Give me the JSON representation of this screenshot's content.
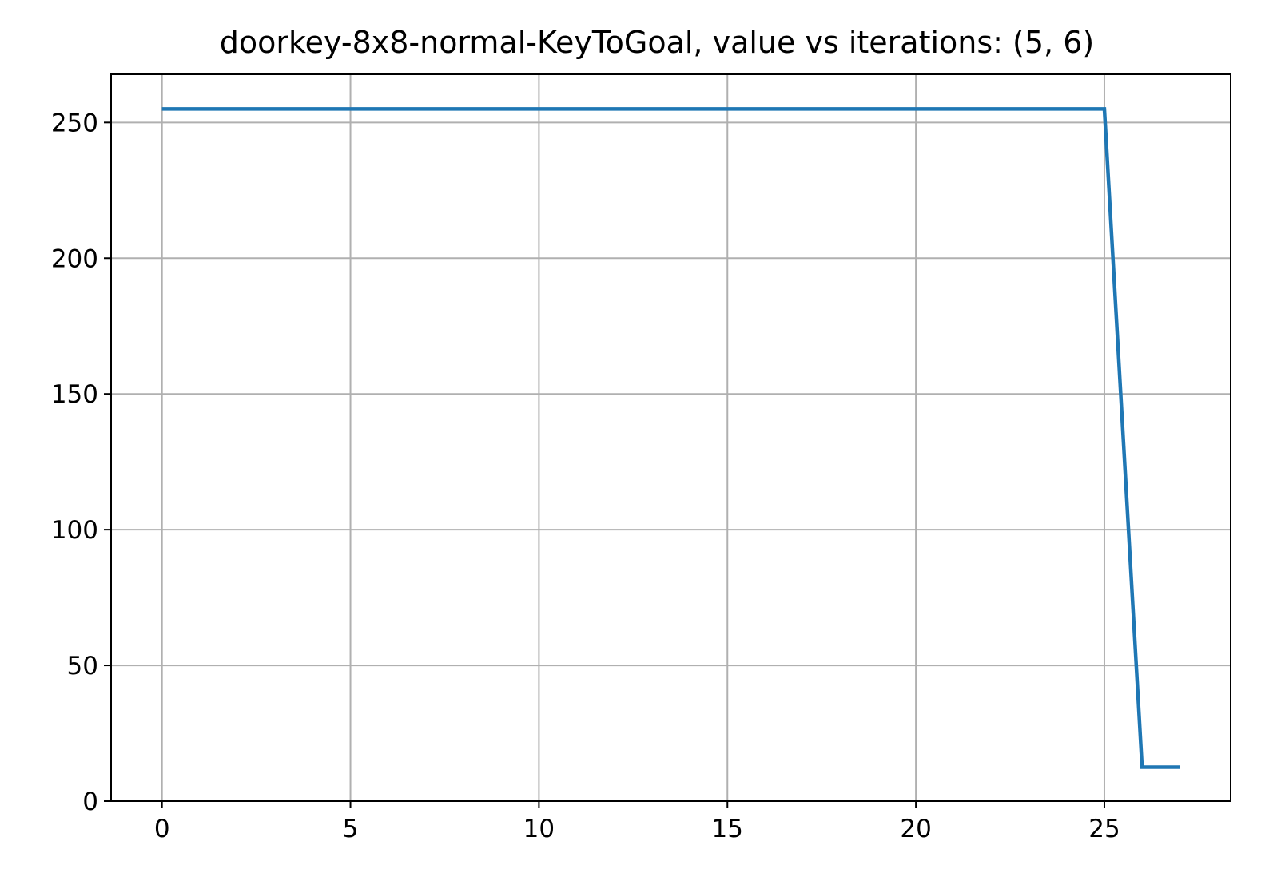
{
  "chart_data": {
    "type": "line",
    "title": "doorkey-8x8-normal-KeyToGoal, value vs iterations: (5, 6)",
    "xlabel": "",
    "ylabel": "",
    "xlim": [
      -1.35,
      28.35
    ],
    "ylim": [
      0,
      267.75
    ],
    "xticks": [
      0,
      5,
      10,
      15,
      20,
      25
    ],
    "yticks": [
      0,
      50,
      100,
      150,
      200,
      250
    ],
    "grid": true,
    "legend": "none",
    "series": [
      {
        "color": "#1f77b4",
        "x": [
          0,
          1,
          2,
          3,
          4,
          5,
          6,
          7,
          8,
          9,
          10,
          11,
          12,
          13,
          14,
          15,
          16,
          17,
          18,
          19,
          20,
          21,
          22,
          23,
          24,
          25,
          26,
          27
        ],
        "y": [
          255,
          255,
          255,
          255,
          255,
          255,
          255,
          255,
          255,
          255,
          255,
          255,
          255,
          255,
          255,
          255,
          255,
          255,
          255,
          255,
          255,
          255,
          255,
          255,
          255,
          255,
          12.5,
          12.5
        ]
      }
    ]
  }
}
